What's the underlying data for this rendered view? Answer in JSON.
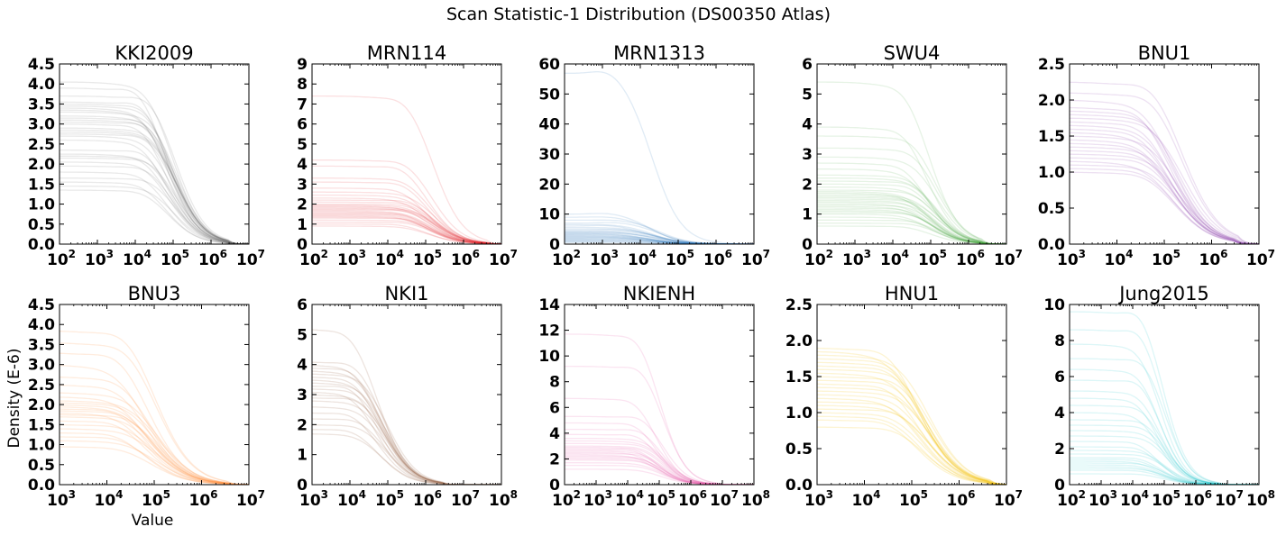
{
  "figure": {
    "suptitle": "Scan Statistic-1 Distribution (DS00350 Atlas)",
    "ylabel": "Density (E-6)",
    "xlabel": "Value"
  },
  "chart_data": [
    {
      "type": "line",
      "title": "KKI2009",
      "color": "#555555",
      "xlog": true,
      "xlim_exp": [
        2,
        7
      ],
      "xticks_exp": [
        2,
        3,
        4,
        5,
        6,
        7
      ],
      "ylim": [
        0,
        4.5
      ],
      "yticks": [
        "0.0",
        "0.5",
        "1.0",
        "1.5",
        "2.0",
        "2.5",
        "3.0",
        "3.5",
        "4.0",
        "4.5"
      ],
      "plateaus": [
        1.35,
        1.45,
        1.55,
        1.65,
        1.8,
        1.95,
        2.05,
        2.15,
        2.2,
        2.25,
        2.35,
        2.6,
        2.7,
        2.75,
        2.8,
        2.85,
        2.9,
        3.0,
        3.05,
        3.1,
        3.15,
        3.2,
        3.3,
        3.35,
        3.4,
        3.45,
        3.5,
        3.55,
        3.7,
        3.9,
        4.05
      ],
      "peak_exp": 4.3,
      "drop_exp": 5.0,
      "end_exp": 6.4,
      "rep_curve": "gray density"
    },
    {
      "type": "line",
      "title": "MRN114",
      "color": "#e31a1c",
      "xlog": true,
      "xlim_exp": [
        2,
        7
      ],
      "xticks_exp": [
        2,
        3,
        4,
        5,
        6,
        7
      ],
      "ylim": [
        0,
        9
      ],
      "yticks": [
        "0",
        "1",
        "2",
        "3",
        "4",
        "5",
        "6",
        "7",
        "8",
        "9"
      ],
      "plateaus": [
        0.9,
        1.0,
        1.1,
        1.2,
        1.3,
        1.35,
        1.4,
        1.45,
        1.5,
        1.55,
        1.6,
        1.65,
        1.7,
        1.75,
        1.8,
        1.85,
        1.9,
        1.95,
        2.0,
        2.1,
        2.2,
        2.3,
        2.45,
        2.6,
        2.8,
        3.1,
        3.3,
        3.9,
        4.2,
        7.4
      ],
      "peak_exp": 4.5,
      "drop_exp": 5.2,
      "end_exp": 6.6,
      "rep_curve": "red density"
    },
    {
      "type": "line",
      "title": "MRN1313",
      "color": "#1f6fb4",
      "xlog": true,
      "xlim_exp": [
        2,
        7
      ],
      "xticks_exp": [
        2,
        3,
        4,
        5,
        6,
        7
      ],
      "ylim": [
        0,
        60
      ],
      "yticks": [
        "0",
        "10",
        "20",
        "30",
        "40",
        "50",
        "60"
      ],
      "plateaus": [
        0.5,
        0.8,
        1.0,
        1.2,
        1.4,
        1.6,
        1.8,
        2.0,
        2.2,
        2.4,
        2.6,
        2.8,
        3.0,
        3.2,
        3.4,
        3.6,
        3.8,
        4.0,
        4.3,
        4.6,
        5.0,
        5.5,
        6.0,
        6.5,
        7.0,
        8.0,
        9.0,
        10.0,
        57.0
      ],
      "peak_exp": 3.3,
      "drop_exp": 4.4,
      "end_exp": 6.5,
      "rep_curve": "blue density"
    },
    {
      "type": "line",
      "title": "SWU4",
      "color": "#33a02c",
      "xlog": true,
      "xlim_exp": [
        2,
        7
      ],
      "xticks_exp": [
        2,
        3,
        4,
        5,
        6,
        7
      ],
      "ylim": [
        0,
        6
      ],
      "yticks": [
        "0",
        "1",
        "2",
        "3",
        "4",
        "5",
        "6"
      ],
      "plateaus": [
        0.6,
        0.7,
        0.8,
        0.9,
        1.0,
        1.05,
        1.1,
        1.15,
        1.2,
        1.25,
        1.3,
        1.35,
        1.4,
        1.45,
        1.5,
        1.55,
        1.6,
        1.65,
        1.7,
        1.75,
        1.8,
        1.9,
        2.0,
        2.1,
        2.2,
        2.3,
        2.5,
        2.7,
        2.9,
        3.2,
        3.6,
        3.9,
        5.4
      ],
      "peak_exp": 4.5,
      "drop_exp": 5.1,
      "end_exp": 6.3,
      "rep_curve": "green density"
    },
    {
      "type": "line",
      "title": "BNU1",
      "color": "#9d5bb5",
      "xlog": true,
      "xlim_exp": [
        3,
        7
      ],
      "xticks_exp": [
        3,
        4,
        5,
        6,
        7
      ],
      "ylim": [
        0,
        2.5
      ],
      "yticks": [
        "0.0",
        "0.5",
        "1.0",
        "1.5",
        "2.0",
        "2.5"
      ],
      "plateaus": [
        1.0,
        1.05,
        1.1,
        1.15,
        1.2,
        1.25,
        1.3,
        1.35,
        1.4,
        1.45,
        1.5,
        1.55,
        1.6,
        1.65,
        1.7,
        1.75,
        1.8,
        1.85,
        1.9,
        2.0,
        2.1,
        2.25
      ],
      "peak_exp": 4.7,
      "drop_exp": 5.3,
      "end_exp": 6.5,
      "rep_curve": "purple density"
    },
    {
      "type": "line",
      "title": "BNU3",
      "color": "#fd8d3c",
      "xlog": true,
      "xlim_exp": [
        3,
        7
      ],
      "xticks_exp": [
        3,
        4,
        5,
        6,
        7
      ],
      "ylim": [
        0,
        4.5
      ],
      "yticks": [
        "0.0",
        "0.5",
        "1.0",
        "1.5",
        "2.0",
        "2.5",
        "3.0",
        "3.5",
        "4.0",
        "4.5"
      ],
      "plateaus": [
        0.95,
        1.1,
        1.2,
        1.3,
        1.4,
        1.5,
        1.6,
        1.7,
        1.75,
        1.8,
        1.85,
        1.9,
        1.95,
        2.0,
        2.05,
        2.1,
        2.2,
        2.3,
        2.5,
        2.7,
        3.0,
        3.3,
        3.55,
        3.85
      ],
      "peak_exp": 4.4,
      "drop_exp": 5.0,
      "end_exp": 6.5,
      "rep_curve": "orange density"
    },
    {
      "type": "line",
      "title": "NKI1",
      "color": "#a0755a",
      "xlog": true,
      "xlim_exp": [
        3,
        8
      ],
      "xticks_exp": [
        3,
        4,
        5,
        6,
        7,
        8
      ],
      "ylim": [
        0,
        6
      ],
      "yticks": [
        "0",
        "1",
        "2",
        "3",
        "4",
        "5",
        "6"
      ],
      "plateaus": [
        1.7,
        1.85,
        2.0,
        2.2,
        2.4,
        2.6,
        2.8,
        2.9,
        3.0,
        3.1,
        3.2,
        3.3,
        3.4,
        3.5,
        3.6,
        3.7,
        3.8,
        3.9,
        4.0,
        4.1,
        5.2
      ],
      "peak_exp": 4.2,
      "drop_exp": 4.9,
      "end_exp": 6.4,
      "rep_curve": "brown density"
    },
    {
      "type": "line",
      "title": "NKIENH",
      "color": "#e85aa8",
      "xlog": true,
      "xlim_exp": [
        2,
        8
      ],
      "xticks_exp": [
        2,
        3,
        4,
        5,
        6,
        7,
        8
      ],
      "ylim": [
        0,
        14
      ],
      "yticks": [
        "0",
        "2",
        "4",
        "6",
        "8",
        "10",
        "12",
        "14"
      ],
      "plateaus": [
        1.2,
        1.5,
        1.7,
        1.9,
        2.0,
        2.1,
        2.2,
        2.3,
        2.4,
        2.5,
        2.6,
        2.7,
        2.8,
        2.9,
        3.0,
        3.2,
        3.4,
        3.6,
        3.9,
        4.3,
        4.8,
        5.3,
        6.7,
        9.2,
        11.7
      ],
      "peak_exp": 4.4,
      "drop_exp": 5.1,
      "end_exp": 6.8,
      "rep_curve": "pink density"
    },
    {
      "type": "line",
      "title": "HNU1",
      "color": "#f2c40c",
      "xlog": true,
      "xlim_exp": [
        3,
        7
      ],
      "xticks_exp": [
        3,
        4,
        5,
        6,
        7
      ],
      "ylim": [
        0,
        2.5
      ],
      "yticks": [
        "0.0",
        "0.5",
        "1.0",
        "1.5",
        "2.0",
        "2.5"
      ],
      "plateaus": [
        0.8,
        0.9,
        0.95,
        1.0,
        1.05,
        1.1,
        1.15,
        1.2,
        1.25,
        1.3,
        1.35,
        1.4,
        1.45,
        1.5,
        1.55,
        1.6,
        1.65,
        1.7,
        1.75,
        1.8,
        1.85,
        1.9
      ],
      "peak_exp": 4.7,
      "drop_exp": 5.3,
      "end_exp": 6.6,
      "rep_curve": "yellow density"
    },
    {
      "type": "line",
      "title": "Jung2015",
      "color": "#17c3c6",
      "xlog": true,
      "xlim_exp": [
        2,
        8
      ],
      "xticks_exp": [
        2,
        3,
        4,
        5,
        6,
        7,
        8
      ],
      "ylim": [
        0,
        10
      ],
      "yticks": [
        "0",
        "2",
        "4",
        "6",
        "8",
        "10"
      ],
      "plateaus": [
        0.6,
        0.8,
        0.9,
        1.0,
        1.1,
        1.2,
        1.3,
        1.4,
        1.5,
        1.7,
        1.9,
        2.1,
        2.4,
        2.7,
        3.0,
        3.3,
        3.6,
        4.0,
        4.4,
        4.8,
        5.2,
        5.8,
        6.4,
        7.0,
        7.8,
        8.6,
        9.6
      ],
      "peak_exp": 4.3,
      "drop_exp": 5.0,
      "end_exp": 6.7,
      "rep_curve": "cyan density"
    }
  ]
}
